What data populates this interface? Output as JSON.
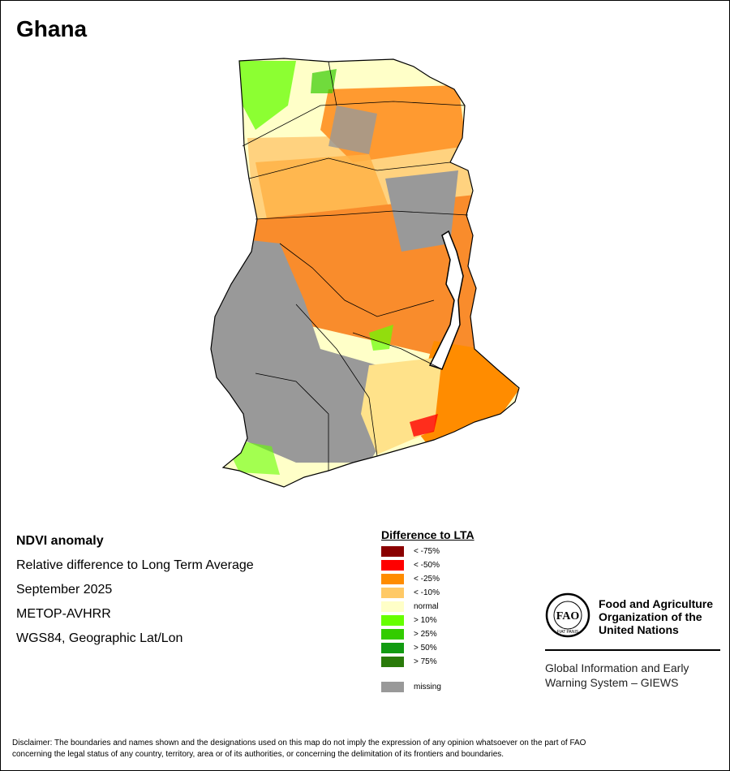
{
  "title": "Ghana",
  "info": {
    "line1": "NDVI anomaly",
    "line2": "Relative difference to Long Term Average",
    "line3": "September 2025",
    "line4": "METOP-AVHRR",
    "line5": "WGS84, Geographic Lat/Lon"
  },
  "legend": {
    "title": "Difference to LTA",
    "items": [
      {
        "label": "< -75%",
        "color": "#8b0000"
      },
      {
        "label": "< -50%",
        "color": "#ff0000"
      },
      {
        "label": "< -25%",
        "color": "#ff8c00"
      },
      {
        "label": "< -10%",
        "color": "#ffc966"
      },
      {
        "label": "normal",
        "color": "#ffffc8"
      },
      {
        "label": "> 10%",
        "color": "#66ff00"
      },
      {
        "label": "> 25%",
        "color": "#33cc00"
      },
      {
        "label": "> 50%",
        "color": "#129b12"
      },
      {
        "label": "> 75%",
        "color": "#2a7a0a"
      }
    ],
    "missing": {
      "label": "missing",
      "color": "#999999"
    }
  },
  "fao": {
    "logo_text": "FAO",
    "logo_motto": "FIAT PANIS",
    "name_line1": "Food and Agriculture",
    "name_line2": "Organization of the",
    "name_line3": "United Nations",
    "giews_line1": "Global Information and Early",
    "giews_line2": "Warning System – GIEWS"
  },
  "disclaimer": {
    "line1": "Disclaimer: The boundaries and names shown and the designations used on this map do not imply the expression of any opinion whatsoever on the part of FAO",
    "line2": "concerning the legal status of any country, territory, area or of its authorities, or concerning the delimitation of its frontiers and boundaries."
  }
}
